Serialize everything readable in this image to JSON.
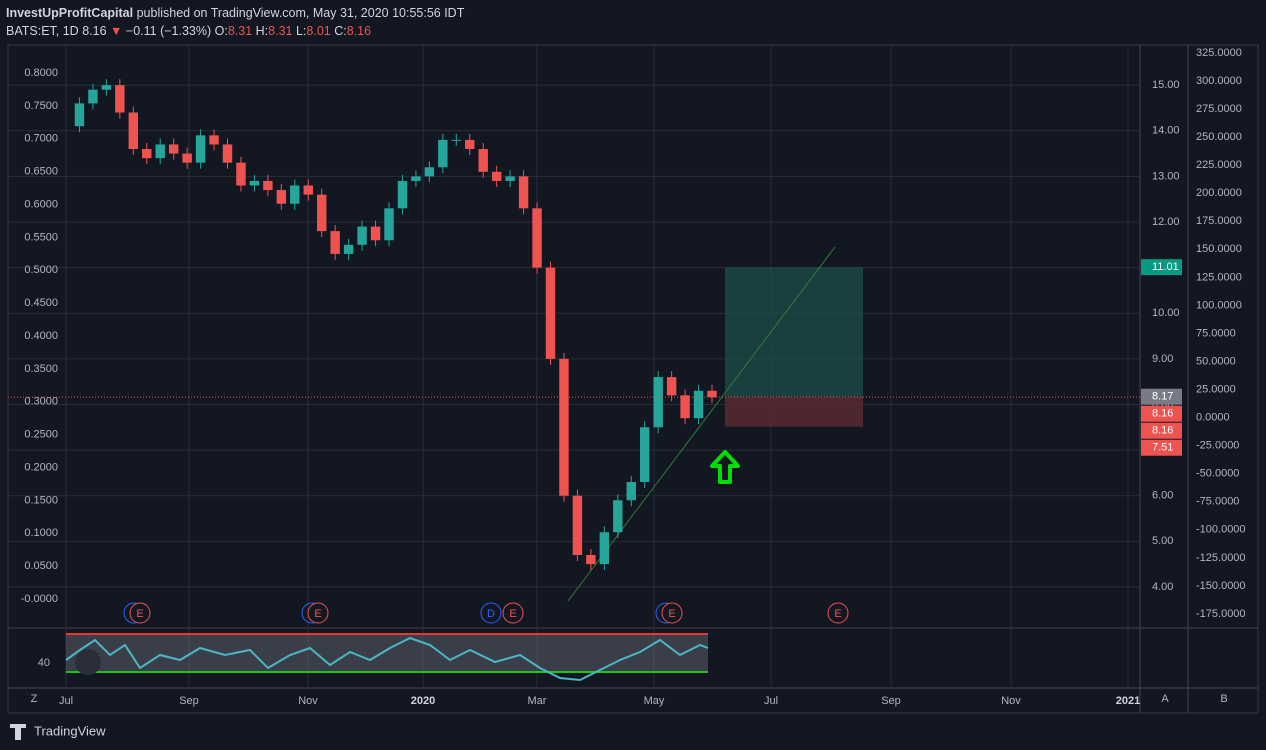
{
  "header": {
    "publisher": "InvestUpProfitCapital",
    "published": "published on TradingView.com, May 31, 2020 10:55:56 IDT",
    "symbol": "BATS:ET, 1D",
    "last": "8.16",
    "arrow": "▼",
    "change": "−0.11 (−1.33%)",
    "o_label": "O:",
    "o": "8.31",
    "h_label": "H:",
    "h": "8.31",
    "l_label": "L:",
    "l": "8.01",
    "c_label": "C:",
    "c": "8.16"
  },
  "chart_data": {
    "type": "candlestick",
    "closes": [
      14.1,
      14.6,
      14.9,
      15.0,
      14.4,
      13.6,
      13.4,
      13.7,
      13.5,
      13.3,
      13.9,
      13.7,
      13.3,
      12.8,
      12.9,
      12.7,
      12.4,
      12.8,
      12.6,
      11.8,
      11.3,
      11.5,
      11.9,
      11.6,
      12.3,
      12.9,
      13.0,
      13.2,
      13.8,
      13.8,
      13.6,
      13.1,
      12.9,
      13.0,
      12.3,
      11.0,
      9.0,
      6.0,
      4.7,
      4.5,
      5.2,
      5.9,
      6.3,
      7.5,
      8.6,
      8.2,
      7.7,
      8.3,
      8.16
    ],
    "ylim": [
      3.1,
      15.88
    ],
    "yticks": [
      {
        "value": 15,
        "label": "15.00"
      },
      {
        "value": 14,
        "label": "14.00"
      },
      {
        "value": 13,
        "label": "13.00"
      },
      {
        "value": 12,
        "label": "12.00"
      },
      {
        "value": 11,
        "label": "11.00"
      },
      {
        "value": 10,
        "label": "10.00"
      },
      {
        "value": 9,
        "label": "9.00"
      },
      {
        "value": 8,
        "label": "8.00"
      },
      {
        "value": 7,
        "label": "7.00"
      },
      {
        "value": 6,
        "label": "6.00"
      },
      {
        "value": 5,
        "label": "5.00"
      },
      {
        "value": 4,
        "label": "4.00"
      }
    ],
    "left_ylim": [
      -0.0441,
      0.8426
    ],
    "left_yticks": [
      {
        "value": 0.8,
        "label": "0.8000"
      },
      {
        "value": 0.75,
        "label": "0.7500"
      },
      {
        "value": 0.7,
        "label": "0.7000"
      },
      {
        "value": 0.65,
        "label": "0.6500"
      },
      {
        "value": 0.6,
        "label": "0.6000"
      },
      {
        "value": 0.55,
        "label": "0.5500"
      },
      {
        "value": 0.5,
        "label": "0.5000"
      },
      {
        "value": 0.45,
        "label": "0.4500"
      },
      {
        "value": 0.4,
        "label": "0.4000"
      },
      {
        "value": 0.35,
        "label": "0.3500"
      },
      {
        "value": 0.3,
        "label": "0.3000"
      },
      {
        "value": 0.25,
        "label": "0.2500"
      },
      {
        "value": 0.2,
        "label": "0.2000"
      },
      {
        "value": 0.15,
        "label": "0.1500"
      },
      {
        "value": 0.1,
        "label": "0.1000"
      },
      {
        "value": 0.05,
        "label": "0.0500"
      },
      {
        "value": 0,
        "label": "-0.0000"
      }
    ],
    "right_ylim": [
      -187.5,
      332.1
    ],
    "right_yticks": [
      {
        "value": 325,
        "label": "325.0000"
      },
      {
        "value": 300,
        "label": "300.0000"
      },
      {
        "value": 275,
        "label": "275.0000"
      },
      {
        "value": 250,
        "label": "250.0000"
      },
      {
        "value": 225,
        "label": "225.0000"
      },
      {
        "value": 200,
        "label": "200.0000"
      },
      {
        "value": 175,
        "label": "175.0000"
      },
      {
        "value": 150,
        "label": "150.0000"
      },
      {
        "value": 125,
        "label": "125.0000"
      },
      {
        "value": 100,
        "label": "100.0000"
      },
      {
        "value": 75,
        "label": "75.0000"
      },
      {
        "value": 50,
        "label": "50.0000"
      },
      {
        "value": 25,
        "label": "25.0000"
      },
      {
        "value": 0,
        "label": "0.0000"
      },
      {
        "value": -25,
        "label": "-25.0000"
      },
      {
        "value": -50,
        "label": "-50.0000"
      },
      {
        "value": -75,
        "label": "-75.0000"
      },
      {
        "value": -100,
        "label": "-100.0000"
      },
      {
        "value": -125,
        "label": "-125.0000"
      },
      {
        "value": -150,
        "label": "-150.0000"
      },
      {
        "value": -175,
        "label": "-175.0000"
      }
    ],
    "x_labels": [
      "Jul",
      "Sep",
      "Nov",
      "2020",
      "Mar",
      "May",
      "Jul",
      "Sep",
      "Nov",
      "2021"
    ],
    "price_tags": [
      {
        "value": 11.01,
        "color": "#089981"
      },
      {
        "value": 8.17,
        "color": "#787b86"
      },
      {
        "value": 8.16,
        "color": "#ef5350"
      },
      {
        "value": 8.16,
        "color": "#ef5350"
      },
      {
        "value": 7.51,
        "color": "#ef5350"
      }
    ],
    "up_color": "#26a69a",
    "down_color": "#ef5350",
    "events": [
      "E",
      "E",
      "D",
      "E",
      "E",
      "E"
    ],
    "indicator_label": "40",
    "axis_buttons": [
      "Z",
      "A",
      "B"
    ]
  },
  "footer": {
    "brand": "TradingView"
  }
}
